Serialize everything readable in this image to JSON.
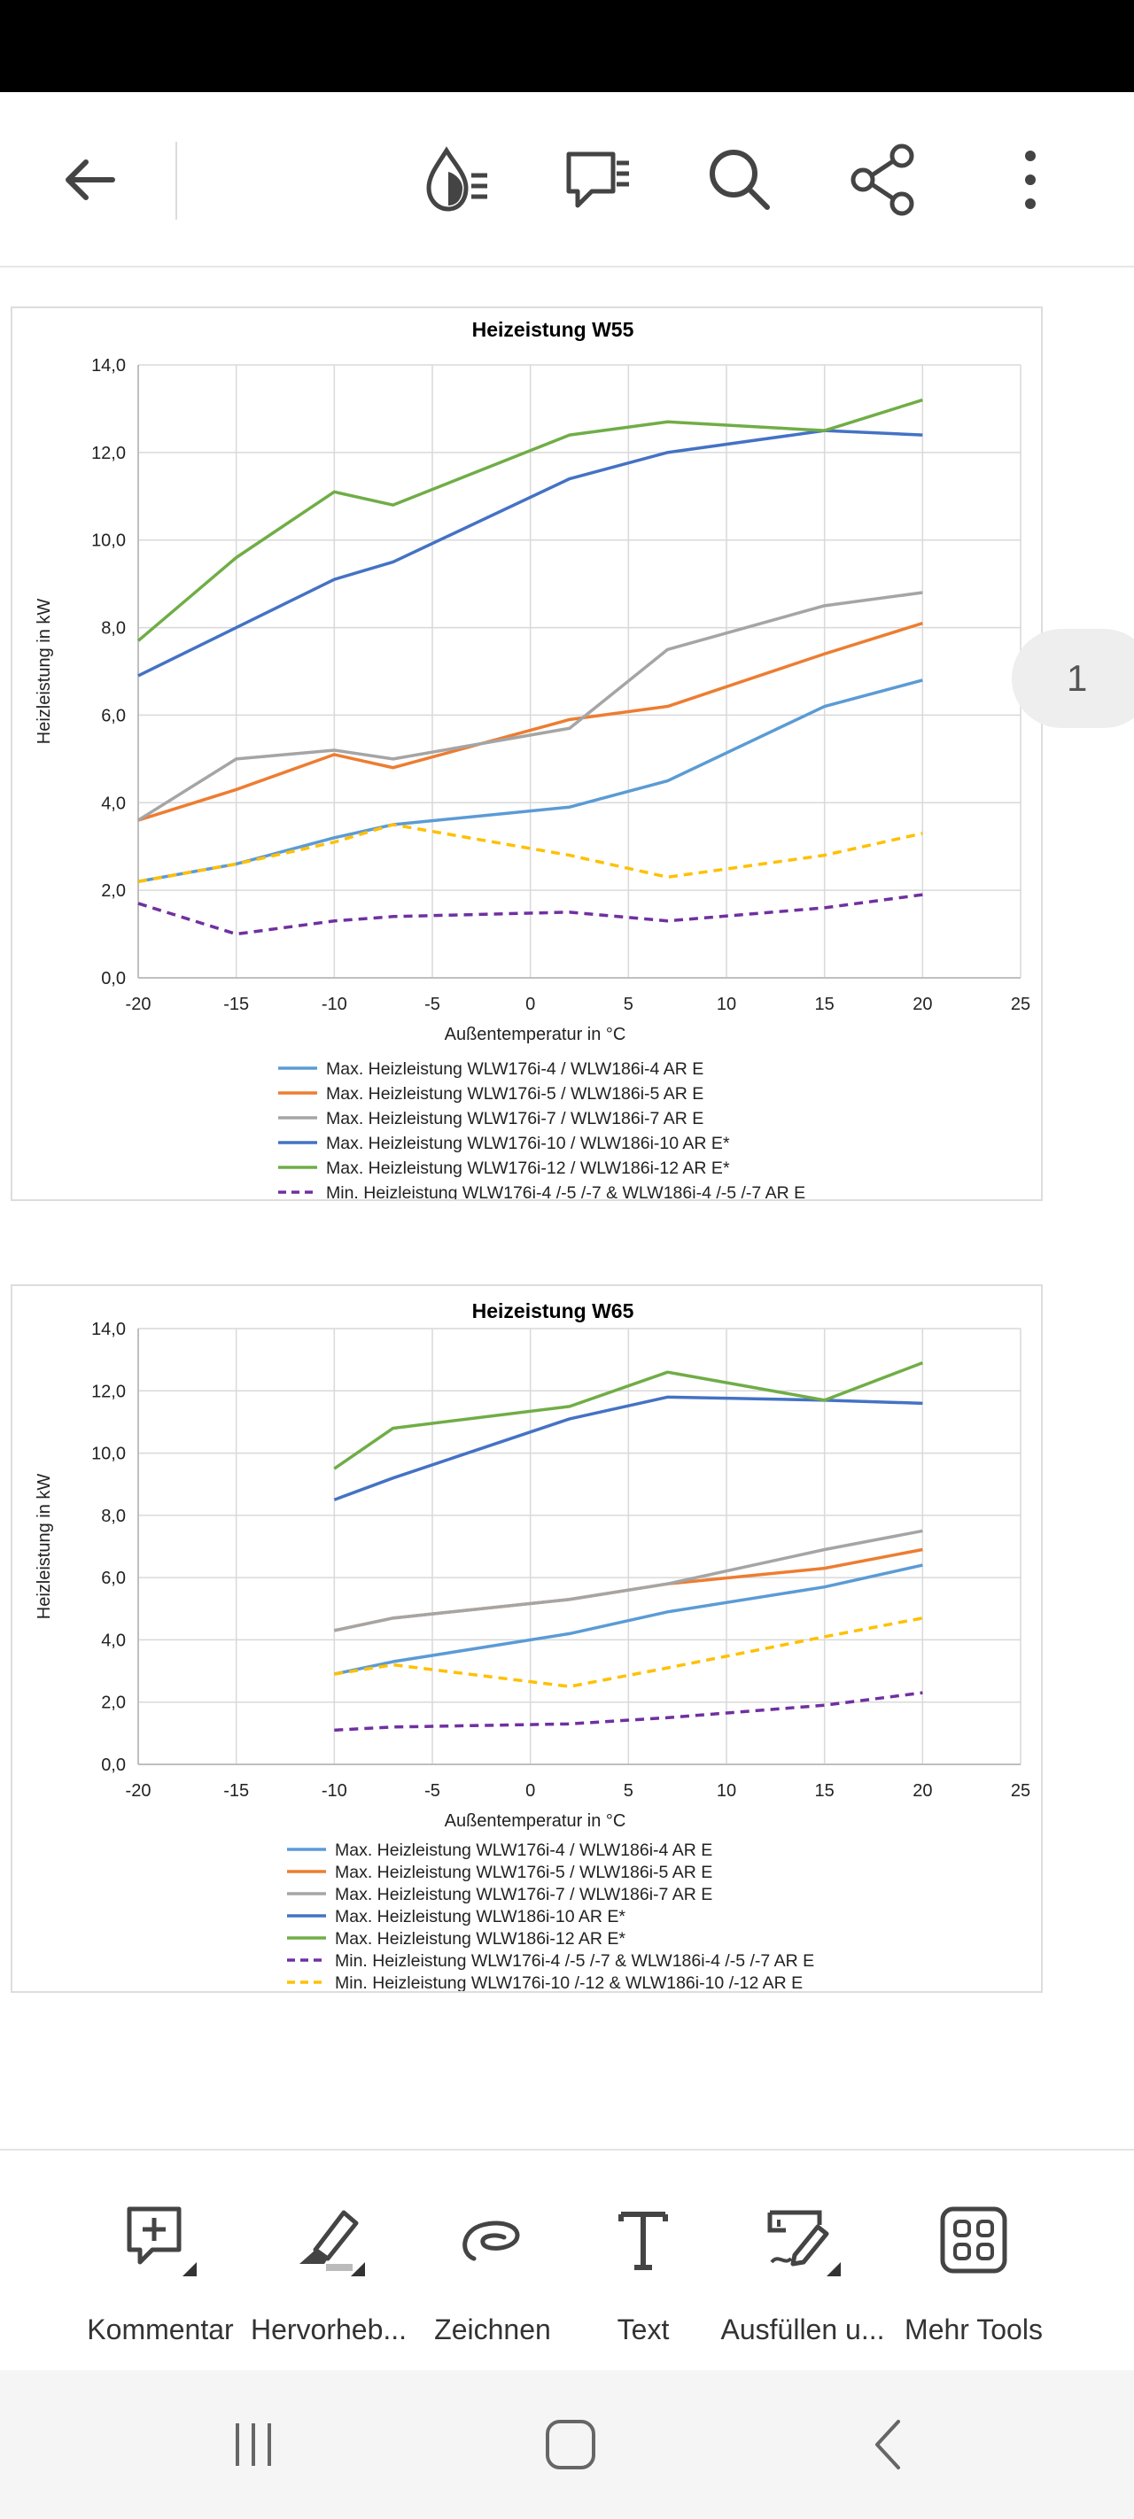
{
  "toolbar": {
    "back_icon": "arrow-left-icon",
    "icons": [
      "read-mode-icon",
      "comments-icon",
      "search-icon",
      "share-icon",
      "more-vertical-icon"
    ]
  },
  "page_indicator": "1",
  "chart_data": [
    {
      "type": "line",
      "title": "Heizeistung W55",
      "xlabel": "Außentemperatur in °C",
      "ylabel": "Heizleistung in kW",
      "xlim": [
        -20,
        25
      ],
      "ylim": [
        0,
        14
      ],
      "x_ticks": [
        "-20",
        "-15",
        "-10",
        "-5",
        "0",
        "5",
        "10",
        "15",
        "20",
        "25"
      ],
      "y_ticks": [
        "0,0",
        "2,0",
        "4,0",
        "6,0",
        "8,0",
        "10,0",
        "12,0",
        "14,0"
      ],
      "grid": true,
      "legend_position": "bottom",
      "series": [
        {
          "name": "Max. Heizleistung WLW176i-4 / WLW186i-4 AR E",
          "color": "#5b9bd5",
          "dashed": false,
          "x": [
            -20,
            -15,
            -10,
            -7,
            2,
            7,
            15,
            20
          ],
          "y": [
            2.2,
            2.6,
            3.2,
            3.5,
            3.9,
            4.5,
            6.2,
            6.8
          ]
        },
        {
          "name": "Max. Heizleistung WLW176i-5 / WLW186i-5 AR E",
          "color": "#ed7d31",
          "dashed": false,
          "x": [
            -20,
            -15,
            -10,
            -7,
            2,
            7,
            15,
            20
          ],
          "y": [
            3.6,
            4.3,
            5.1,
            4.8,
            5.9,
            6.2,
            7.4,
            8.1
          ]
        },
        {
          "name": "Max. Heizleistung WLW176i-7 / WLW186i-7 AR E",
          "color": "#a5a5a5",
          "dashed": false,
          "x": [
            -20,
            -15,
            -10,
            -7,
            2,
            7,
            15,
            20
          ],
          "y": [
            3.6,
            5.0,
            5.2,
            5.0,
            5.7,
            7.5,
            8.5,
            8.8
          ]
        },
        {
          "name": "Max. Heizleistung WLW176i-10 / WLW186i-10 AR E*",
          "color": "#4472c4",
          "dashed": false,
          "x": [
            -20,
            -15,
            -10,
            -7,
            2,
            7,
            15,
            20
          ],
          "y": [
            6.9,
            8.0,
            9.1,
            9.5,
            11.4,
            12.0,
            12.5,
            12.4
          ]
        },
        {
          "name": "Max. Heizleistung WLW176i-12 / WLW186i-12 AR E*",
          "color": "#70ad47",
          "dashed": false,
          "x": [
            -20,
            -15,
            -10,
            -7,
            2,
            7,
            15,
            20
          ],
          "y": [
            7.7,
            9.6,
            11.1,
            10.8,
            12.4,
            12.7,
            12.5,
            13.2
          ]
        },
        {
          "name": "Min. Heizleistung WLW176i-4 /-5 /-7 & WLW186i-4 /-5 /-7 AR E",
          "color": "#7030a0",
          "dashed": true,
          "x": [
            -20,
            -15,
            -10,
            -7,
            2,
            7,
            15,
            20
          ],
          "y": [
            1.7,
            1.0,
            1.3,
            1.4,
            1.5,
            1.3,
            1.6,
            1.9
          ]
        },
        {
          "color": "#ffc000",
          "dashed": true,
          "x": [
            -20,
            -15,
            -10,
            -7,
            2,
            7,
            15,
            20
          ],
          "y": [
            2.2,
            2.6,
            3.1,
            3.5,
            2.8,
            2.3,
            2.8,
            3.3
          ]
        }
      ]
    },
    {
      "type": "line",
      "title": "Heizeistung W65",
      "xlabel": "Außentemperatur in °C",
      "ylabel": "Heizleistung in kW",
      "xlim": [
        -20,
        25
      ],
      "ylim": [
        0,
        14
      ],
      "x_ticks": [
        "-20",
        "-15",
        "-10",
        "-5",
        "0",
        "5",
        "10",
        "15",
        "20",
        "25"
      ],
      "y_ticks": [
        "0,0",
        "2,0",
        "4,0",
        "6,0",
        "8,0",
        "10,0",
        "12,0",
        "14,0"
      ],
      "grid": true,
      "legend_position": "bottom",
      "series": [
        {
          "name": "Max. Heizleistung WLW176i-4 / WLW186i-4 AR E",
          "color": "#5b9bd5",
          "dashed": false,
          "x": [
            -10,
            -7,
            2,
            7,
            15,
            20
          ],
          "y": [
            2.9,
            3.3,
            4.2,
            4.9,
            5.7,
            6.4
          ]
        },
        {
          "name": "Max. Heizleistung WLW176i-5 / WLW186i-5 AR E",
          "color": "#ed7d31",
          "dashed": false,
          "x": [
            -10,
            -7,
            2,
            7,
            15,
            20
          ],
          "y": [
            4.3,
            4.7,
            5.3,
            5.8,
            6.3,
            6.9
          ]
        },
        {
          "name": "Max. Heizleistung WLW176i-7 / WLW186i-7 AR E",
          "color": "#a5a5a5",
          "dashed": false,
          "x": [
            -10,
            -7,
            2,
            7,
            15,
            20
          ],
          "y": [
            4.3,
            4.7,
            5.3,
            5.8,
            6.9,
            7.5
          ]
        },
        {
          "name": "Max. Heizleistung WLW186i-10 AR E*",
          "color": "#4472c4",
          "dashed": false,
          "x": [
            -10,
            -7,
            2,
            7,
            15,
            20
          ],
          "y": [
            8.5,
            9.2,
            11.1,
            11.8,
            11.7,
            11.6
          ]
        },
        {
          "name": "Max. Heizleistung WLW186i-12 AR E*",
          "color": "#70ad47",
          "dashed": false,
          "x": [
            -10,
            -7,
            2,
            7,
            15,
            20
          ],
          "y": [
            9.5,
            10.8,
            11.5,
            12.6,
            11.7,
            12.9
          ]
        },
        {
          "name": "Min. Heizleistung WLW176i-4 /-5 /-7 & WLW186i-4 /-5 /-7 AR E",
          "color": "#7030a0",
          "dashed": true,
          "x": [
            -10,
            -7,
            2,
            7,
            15,
            20
          ],
          "y": [
            1.1,
            1.2,
            1.3,
            1.5,
            1.9,
            2.3
          ]
        },
        {
          "name": "Min. Heizleistung WLW176i-10 /-12 & WLW186i-10 /-12 AR E",
          "color": "#ffc000",
          "dashed": true,
          "x": [
            -10,
            -7,
            2,
            7,
            15,
            20
          ],
          "y": [
            2.9,
            3.2,
            2.5,
            3.1,
            4.1,
            4.7
          ]
        }
      ]
    }
  ],
  "bottom_tools": [
    {
      "label": "Kommentar",
      "icon": "comment-add-icon"
    },
    {
      "label": "Hervorheb...",
      "icon": "highlighter-icon"
    },
    {
      "label": "Zeichnen",
      "icon": "draw-icon"
    },
    {
      "label": "Text",
      "icon": "text-icon"
    },
    {
      "label": "Ausfüllen u...",
      "icon": "fill-sign-icon"
    },
    {
      "label": "Mehr Tools",
      "icon": "grid-icon"
    }
  ],
  "nav": {
    "icons": [
      "recent-apps-icon",
      "home-icon",
      "back-icon"
    ]
  }
}
